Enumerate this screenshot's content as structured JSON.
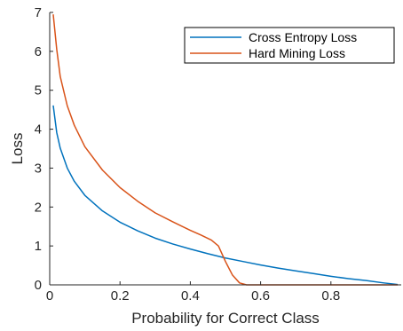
{
  "chart_data": {
    "type": "line",
    "title": "",
    "xlabel": "Probability for Correct Class",
    "ylabel": "Loss",
    "xlim": [
      0,
      1
    ],
    "ylim": [
      0,
      7
    ],
    "xticks": [
      0,
      0.2,
      0.4,
      0.6,
      0.8
    ],
    "xtick_labels": [
      "0",
      "0.2",
      "0.4",
      "0.6",
      "0.8"
    ],
    "yticks": [
      0,
      1,
      2,
      3,
      4,
      5,
      6,
      7
    ],
    "ytick_labels": [
      "0",
      "1",
      "2",
      "3",
      "4",
      "5",
      "6",
      "7"
    ],
    "grid": false,
    "legend_position": "top-right",
    "series": [
      {
        "name": "Cross Entropy Loss",
        "color": "#0072bd",
        "x": [
          0.01,
          0.02,
          0.03,
          0.05,
          0.07,
          0.1,
          0.15,
          0.2,
          0.25,
          0.3,
          0.35,
          0.4,
          0.45,
          0.5,
          0.55,
          0.6,
          0.65,
          0.7,
          0.75,
          0.8,
          0.85,
          0.9,
          0.95,
          0.99
        ],
        "y": [
          4.61,
          3.91,
          3.51,
          3.0,
          2.66,
          2.3,
          1.9,
          1.61,
          1.39,
          1.2,
          1.05,
          0.92,
          0.8,
          0.69,
          0.6,
          0.51,
          0.43,
          0.36,
          0.29,
          0.22,
          0.16,
          0.11,
          0.05,
          0.01
        ]
      },
      {
        "name": "Hard Mining Loss",
        "color": "#d95319",
        "x": [
          0.01,
          0.02,
          0.03,
          0.05,
          0.07,
          0.1,
          0.15,
          0.2,
          0.25,
          0.3,
          0.35,
          0.4,
          0.43,
          0.46,
          0.48,
          0.5,
          0.52,
          0.54,
          0.56,
          0.6,
          0.7,
          0.8,
          0.9,
          0.99
        ],
        "y": [
          6.95,
          6.05,
          5.35,
          4.6,
          4.1,
          3.55,
          2.95,
          2.5,
          2.15,
          1.85,
          1.62,
          1.4,
          1.28,
          1.15,
          1.0,
          0.6,
          0.25,
          0.05,
          0.0,
          0.0,
          0.0,
          0.0,
          0.0,
          0.0
        ]
      }
    ]
  }
}
